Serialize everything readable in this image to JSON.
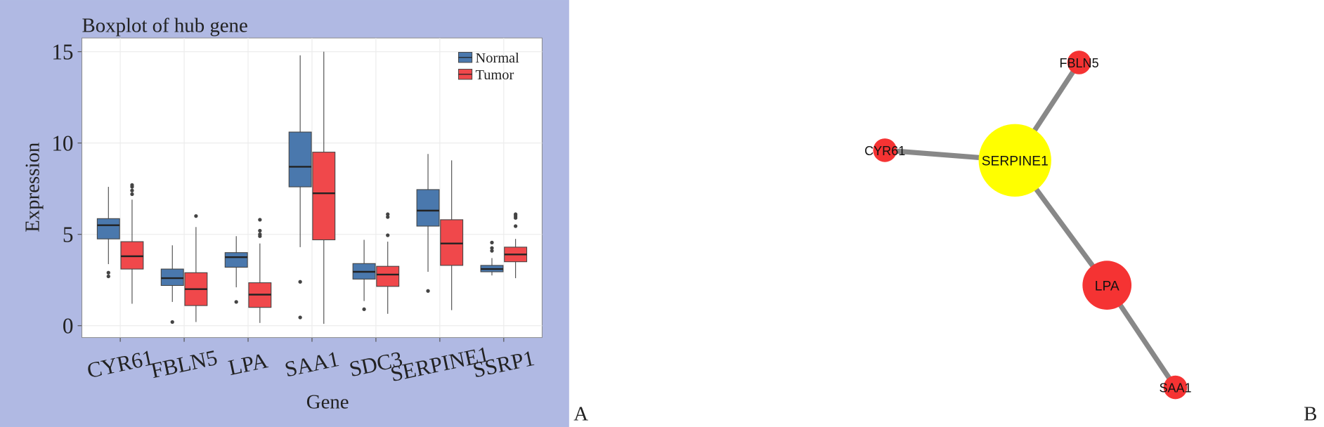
{
  "chart_data": {
    "type": "boxplot",
    "title": "Boxplot of hub gene",
    "x_label": "Gene",
    "y_label": "Expression",
    "categories": [
      "CYR61",
      "FBLN5",
      "LPA",
      "SAA1",
      "SDC3",
      "SERPINE1",
      "SSRP1"
    ],
    "ylim": [
      -0.65,
      15.75
    ],
    "yticks": [
      0,
      5,
      10,
      15
    ],
    "grid": true,
    "series": [
      {
        "name": "Normal",
        "color": "#4a78ad",
        "min": [
          3.37,
          1.3,
          2.1,
          4.3,
          1.35,
          2.95,
          2.75
        ],
        "q1": [
          4.75,
          2.2,
          3.2,
          7.6,
          2.55,
          5.45,
          2.95
        ],
        "median": [
          5.5,
          2.6,
          3.75,
          8.7,
          2.95,
          6.3,
          3.1
        ],
        "q3": [
          5.86,
          3.1,
          4.0,
          10.6,
          3.4,
          7.45,
          3.3
        ],
        "max": [
          7.6,
          4.4,
          4.9,
          14.8,
          4.7,
          9.4,
          3.7
        ],
        "outliers": [
          [
            2.9,
            2.7
          ],
          [
            0.2
          ],
          [
            1.3
          ],
          [
            2.4,
            0.45
          ],
          [
            0.9
          ],
          [
            1.9
          ],
          [
            4.55,
            4.25,
            4.1
          ]
        ]
      },
      {
        "name": "Tumor",
        "color": "#f0484b",
        "min": [
          1.2,
          0.2,
          0.15,
          0.1,
          0.65,
          0.85,
          2.6
        ],
        "q1": [
          3.1,
          1.1,
          1.0,
          4.7,
          2.15,
          3.3,
          3.5
        ],
        "median": [
          3.8,
          2.0,
          1.7,
          7.25,
          2.8,
          4.5,
          3.9
        ],
        "q3": [
          4.6,
          2.9,
          2.35,
          9.5,
          3.25,
          5.8,
          4.3
        ],
        "max": [
          6.9,
          5.4,
          4.5,
          15.0,
          4.6,
          9.05,
          4.75
        ],
        "outliers": [
          [
            7.7,
            7.6,
            7.4,
            7.2
          ],
          [
            6.0
          ],
          [
            5.8,
            5.2,
            5.0,
            4.9
          ],
          [],
          [
            6.1,
            5.95,
            4.95
          ],
          [],
          [
            6.1,
            6.0,
            5.9,
            5.45
          ]
        ]
      }
    ]
  },
  "network": {
    "nodes": [
      {
        "label": "SERPINE1"
      },
      {
        "label": "FBLN5"
      },
      {
        "label": "CYR61"
      },
      {
        "label": "LPA"
      },
      {
        "label": "SAA1"
      }
    ]
  },
  "panel_labels": [
    "A",
    "B"
  ]
}
